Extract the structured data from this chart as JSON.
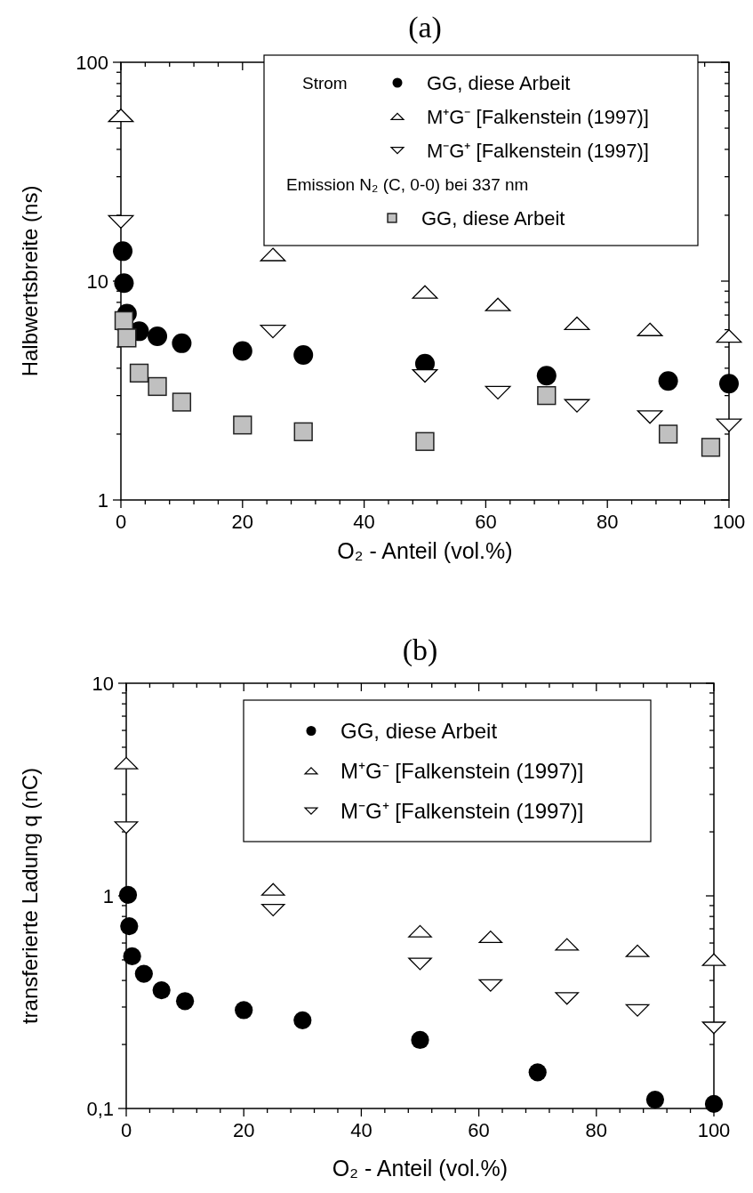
{
  "chart_data": [
    {
      "type": "scatter",
      "title": "(a)",
      "xlabel": "O₂ - Anteil (vol.%)",
      "ylabel": "Halbwertsbreite (ns)",
      "log": "y",
      "legend": "top right",
      "annotations": [
        "Strom",
        "Emission N₂ (C, 0-0) bei 337 nm"
      ],
      "xlim": [
        0,
        100
      ],
      "xticks": [
        0,
        {
          "value": 4,
          "label": null
        },
        {
          "value": 8,
          "label": null
        },
        {
          "value": 12,
          "label": null
        },
        {
          "value": 16,
          "label": null
        },
        20,
        {
          "value": 24,
          "label": null
        },
        {
          "value": 28,
          "label": null
        },
        {
          "value": 32,
          "label": null
        },
        {
          "value": 36,
          "label": null
        },
        40,
        {
          "value": 44,
          "label": null
        },
        {
          "value": 48,
          "label": null
        },
        {
          "value": 52,
          "label": null
        },
        {
          "value": 56,
          "label": null
        },
        60,
        {
          "value": 64,
          "label": null
        },
        {
          "value": 68,
          "label": null
        },
        {
          "value": 72,
          "label": null
        },
        {
          "value": 76,
          "label": null
        },
        80,
        {
          "value": 84,
          "label": null
        },
        {
          "value": 88,
          "label": null
        },
        {
          "value": 92,
          "label": null
        },
        {
          "value": 96,
          "label": null
        },
        100
      ],
      "ylim": [
        1,
        100
      ],
      "yticks": [
        1,
        {
          "value": 2,
          "label": null
        },
        {
          "value": 3,
          "label": null
        },
        {
          "value": 4,
          "label": null
        },
        {
          "value": 5,
          "label": null
        },
        {
          "value": 6,
          "label": null
        },
        {
          "value": 7,
          "label": null
        },
        {
          "value": 8,
          "label": null
        },
        {
          "value": 9,
          "label": null
        },
        10,
        {
          "value": 20,
          "label": null
        },
        {
          "value": 30,
          "label": null
        },
        {
          "value": 40,
          "label": null
        },
        {
          "value": 50,
          "label": null
        },
        {
          "value": 60,
          "label": null
        },
        {
          "value": 70,
          "label": null
        },
        {
          "value": 80,
          "label": null
        },
        {
          "value": 90,
          "label": null
        },
        100
      ],
      "series": [
        {
          "name": "GG, diese Arbeit",
          "marker": "circle",
          "color": "#000000",
          "x": [
            0.3,
            0.5,
            1,
            3,
            6,
            10,
            20,
            30,
            50,
            70,
            90,
            100
          ],
          "values": [
            13.7,
            9.8,
            7.1,
            5.9,
            5.6,
            5.2,
            4.8,
            4.6,
            4.2,
            3.7,
            3.5,
            3.4
          ]
        },
        {
          "name": "M⁺G⁻ [Falkenstein (1997)]",
          "marker": "triangle",
          "color": "#ffffff",
          "x": [
            0,
            25,
            50,
            62,
            75,
            87,
            100
          ],
          "values": [
            57,
            13.2,
            8.9,
            7.8,
            6.4,
            6.0,
            5.6
          ]
        },
        {
          "name": "M⁻G⁺ [Falkenstein (1997)]",
          "marker": "triangle-down",
          "color": "#ffffff",
          "x": [
            0,
            25,
            50,
            62,
            75,
            87,
            100
          ],
          "values": [
            18.7,
            5.9,
            3.7,
            3.1,
            2.7,
            2.4,
            2.2
          ]
        },
        {
          "name": "GG, diese Arbeit",
          "marker": "square",
          "color": "#c0c0c0",
          "x": [
            0.5,
            1,
            3,
            6,
            10,
            20,
            30,
            50,
            70,
            90,
            97
          ],
          "values": [
            6.6,
            5.5,
            3.8,
            3.3,
            2.8,
            2.2,
            2.05,
            1.85,
            3.0,
            2.0,
            1.74
          ]
        }
      ]
    },
    {
      "type": "scatter",
      "title": "(b)",
      "xlabel": "O₂ - Anteil (vol.%)",
      "ylabel": "transferierte Ladung q (nC)",
      "log": "y",
      "legend": "top right",
      "xlim": [
        0,
        100
      ],
      "xticks": [
        0,
        {
          "value": 4,
          "label": null
        },
        {
          "value": 8,
          "label": null
        },
        {
          "value": 12,
          "label": null
        },
        {
          "value": 16,
          "label": null
        },
        20,
        {
          "value": 24,
          "label": null
        },
        {
          "value": 28,
          "label": null
        },
        {
          "value": 32,
          "label": null
        },
        {
          "value": 36,
          "label": null
        },
        40,
        {
          "value": 44,
          "label": null
        },
        {
          "value": 48,
          "label": null
        },
        {
          "value": 52,
          "label": null
        },
        {
          "value": 56,
          "label": null
        },
        60,
        {
          "value": 64,
          "label": null
        },
        {
          "value": 68,
          "label": null
        },
        {
          "value": 72,
          "label": null
        },
        {
          "value": 76,
          "label": null
        },
        80,
        {
          "value": 84,
          "label": null
        },
        {
          "value": 88,
          "label": null
        },
        {
          "value": 92,
          "label": null
        },
        {
          "value": 96,
          "label": null
        },
        100
      ],
      "ylim": [
        0.1,
        10
      ],
      "yticks": [
        {
          "value": 0.1,
          "label": "0,1"
        },
        {
          "value": 0.2,
          "label": null
        },
        {
          "value": 0.3,
          "label": null
        },
        {
          "value": 0.4,
          "label": null
        },
        {
          "value": 0.5,
          "label": null
        },
        {
          "value": 0.6,
          "label": null
        },
        {
          "value": 0.7,
          "label": null
        },
        {
          "value": 0.8,
          "label": null
        },
        {
          "value": 0.9,
          "label": null
        },
        1,
        {
          "value": 2,
          "label": null
        },
        {
          "value": 3,
          "label": null
        },
        {
          "value": 4,
          "label": null
        },
        {
          "value": 5,
          "label": null
        },
        {
          "value": 6,
          "label": null
        },
        {
          "value": 7,
          "label": null
        },
        {
          "value": 8,
          "label": null
        },
        {
          "value": 9,
          "label": null
        },
        10
      ],
      "series": [
        {
          "name": "GG, diese Arbeit",
          "marker": "circle",
          "color": "#000000",
          "x": [
            0.3,
            0.5,
            1,
            3,
            6,
            10,
            20,
            30,
            50,
            70,
            90,
            100
          ],
          "values": [
            1.01,
            0.72,
            0.52,
            0.43,
            0.36,
            0.32,
            0.29,
            0.26,
            0.21,
            0.148,
            0.11,
            0.105
          ]
        },
        {
          "name": "M⁺G⁻  [Falkenstein (1997)]",
          "marker": "triangle",
          "color": "#ffffff",
          "x": [
            0,
            25,
            50,
            62,
            75,
            87,
            100
          ],
          "values": [
            4.2,
            1.07,
            0.68,
            0.64,
            0.59,
            0.55,
            0.5
          ]
        },
        {
          "name": "M⁻G⁺  [Falkenstein (1997)]",
          "marker": "triangle-down",
          "color": "#ffffff",
          "x": [
            0,
            25,
            50,
            62,
            75,
            87,
            100
          ],
          "values": [
            2.1,
            0.86,
            0.48,
            0.38,
            0.33,
            0.29,
            0.24
          ]
        }
      ]
    }
  ]
}
